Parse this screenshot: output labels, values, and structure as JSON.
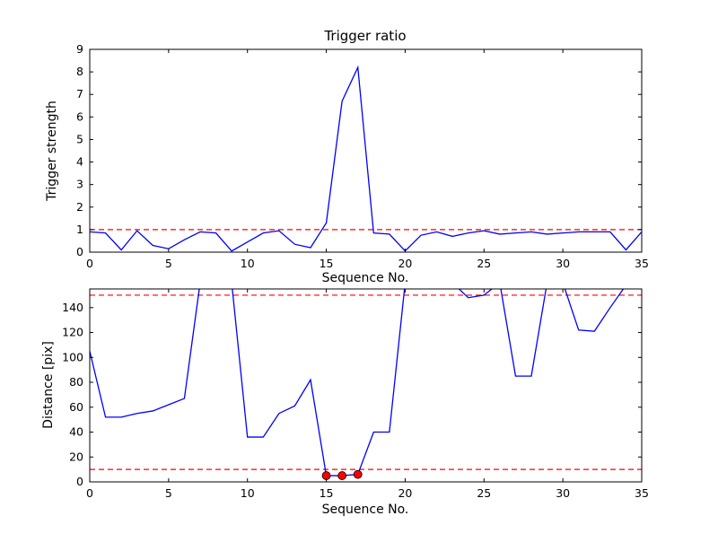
{
  "figure": {
    "background": "#ffffff",
    "frame_color": "#000000"
  },
  "chart_data": [
    {
      "type": "line",
      "title": "Trigger ratio",
      "xlabel": "Sequence No.",
      "ylabel": "Trigger strength",
      "xlim": [
        0,
        35
      ],
      "ylim": [
        0,
        9
      ],
      "xticks": [
        0,
        5,
        10,
        15,
        20,
        25,
        30,
        35
      ],
      "yticks": [
        0,
        1,
        2,
        3,
        4,
        5,
        6,
        7,
        8,
        9
      ],
      "grid": false,
      "legend": "none",
      "hlines": [
        {
          "y": 1,
          "color": "#ff0000",
          "style": "dashed"
        }
      ],
      "series": [
        {
          "name": "trigger strength",
          "color": "#0000ff",
          "x": [
            0,
            1,
            2,
            3,
            4,
            5,
            6,
            7,
            8,
            9,
            10,
            11,
            12,
            13,
            14,
            15,
            16,
            17,
            18,
            19,
            20,
            21,
            22,
            23,
            24,
            25,
            26,
            27,
            28,
            29,
            30,
            31,
            32,
            33,
            34,
            35
          ],
          "y": [
            0.9,
            0.85,
            0.1,
            0.95,
            0.3,
            0.15,
            0.55,
            0.9,
            0.85,
            0.05,
            0.45,
            0.85,
            0.95,
            0.35,
            0.2,
            1.3,
            6.7,
            8.2,
            0.85,
            0.8,
            0.05,
            0.75,
            0.9,
            0.7,
            0.85,
            0.95,
            0.8,
            0.85,
            0.9,
            0.8,
            0.85,
            0.9,
            0.9,
            0.9,
            0.1,
            0.9
          ]
        }
      ]
    },
    {
      "type": "line",
      "title": "",
      "xlabel": "Sequence No.",
      "ylabel": "Distance [pix]",
      "xlim": [
        0,
        35
      ],
      "ylim": [
        0,
        155
      ],
      "xticks": [
        0,
        5,
        10,
        15,
        20,
        25,
        30,
        35
      ],
      "yticks": [
        0,
        20,
        40,
        60,
        80,
        100,
        120,
        140
      ],
      "grid": false,
      "legend": "none",
      "hlines": [
        {
          "y": 150,
          "color": "#ff0000",
          "style": "dashed"
        },
        {
          "y": 10,
          "color": "#ff0000",
          "style": "dashed"
        }
      ],
      "series": [
        {
          "name": "distance",
          "color": "#0000ff",
          "x": [
            0,
            1,
            2,
            3,
            4,
            5,
            6,
            7,
            8,
            9,
            10,
            11,
            12,
            13,
            14,
            15,
            16,
            17,
            18,
            19,
            20,
            21,
            22,
            23,
            24,
            25,
            26,
            27,
            28,
            29,
            30,
            31,
            32,
            33,
            34,
            35
          ],
          "y": [
            105,
            52,
            52,
            55,
            57,
            62,
            67,
            160,
            160,
            160,
            36,
            36,
            55,
            61,
            82,
            5,
            5,
            6,
            40,
            40,
            160,
            160,
            160,
            160,
            148,
            150,
            160,
            85,
            85,
            160,
            160,
            122,
            121,
            140,
            158,
            158
          ]
        }
      ],
      "markers": {
        "shape": "circle",
        "fill": "#ff0000",
        "edge": "#000000",
        "points": [
          [
            15,
            5
          ],
          [
            16,
            5
          ],
          [
            17,
            6
          ]
        ]
      }
    }
  ]
}
